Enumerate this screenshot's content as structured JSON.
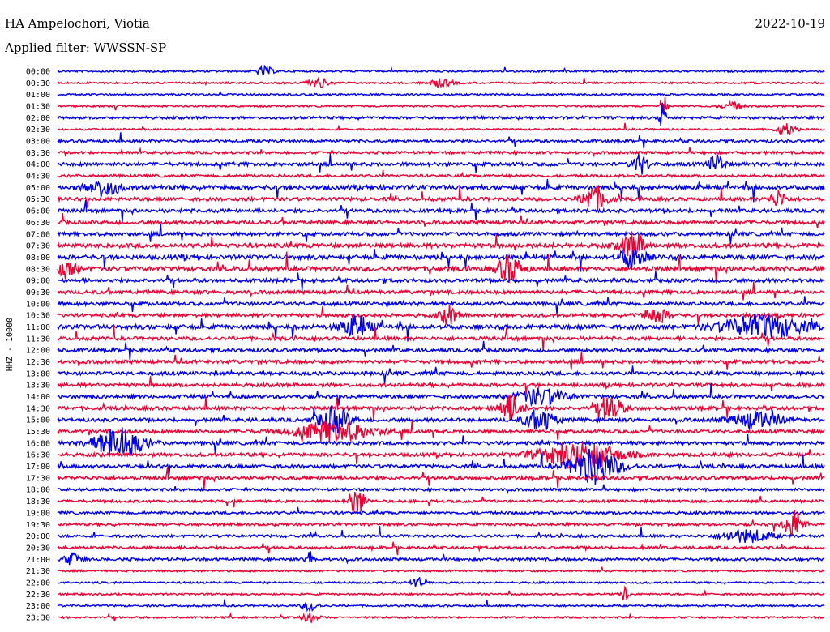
{
  "header": {
    "station": "HA Ampelochori, Viotia",
    "filter": "Applied filter: WWSSN-SP",
    "date": "2022-10-19"
  },
  "chart_data": {
    "type": "line",
    "title": "HA Ampelochori, Viotia",
    "subtitle": "Applied filter: WWSSN-SP",
    "date": "2022-10-19",
    "ylabel": "HHZ - 10000",
    "xlabel": "",
    "categories": [
      "00:00",
      "00:30",
      "01:00",
      "01:30",
      "02:00",
      "02:30",
      "03:00",
      "03:30",
      "04:00",
      "04:30",
      "05:00",
      "05:30",
      "06:00",
      "06:30",
      "07:00",
      "07:30",
      "08:00",
      "08:30",
      "09:00",
      "09:30",
      "10:00",
      "10:30",
      "11:00",
      "11:30",
      "12:00",
      "12:30",
      "13:00",
      "13:30",
      "14:00",
      "14:30",
      "15:00",
      "15:30",
      "16:00",
      "16:30",
      "17:00",
      "17:30",
      "18:00",
      "18:30",
      "19:00",
      "19:30",
      "20:00",
      "20:30",
      "21:00",
      "21:30",
      "22:00",
      "22:30",
      "23:00",
      "23:30"
    ],
    "colors": {
      "even": "#0000ee",
      "odd": "#ee0033"
    },
    "activity": [
      1,
      1,
      1,
      1,
      2,
      1,
      2,
      2,
      3,
      2,
      4,
      3,
      3,
      3,
      3,
      4,
      4,
      4,
      3,
      3,
      3,
      3,
      4,
      3,
      3,
      3,
      3,
      3,
      3,
      3,
      3,
      3,
      3,
      3,
      3,
      3,
      2,
      2,
      2,
      2,
      2,
      2,
      2,
      1,
      1,
      1,
      1,
      1
    ],
    "events": [
      {
        "row": 0,
        "pos": 0.27,
        "amp": 6,
        "width": 0.01
      },
      {
        "row": 1,
        "pos": 0.34,
        "amp": 5,
        "width": 0.015
      },
      {
        "row": 1,
        "pos": 0.5,
        "amp": 5,
        "width": 0.015
      },
      {
        "row": 3,
        "pos": 0.79,
        "amp": 14,
        "width": 0.004
      },
      {
        "row": 3,
        "pos": 0.88,
        "amp": 5,
        "width": 0.012
      },
      {
        "row": 4,
        "pos": 0.79,
        "amp": 22,
        "width": 0.004
      },
      {
        "row": 5,
        "pos": 0.95,
        "amp": 7,
        "width": 0.012
      },
      {
        "row": 8,
        "pos": 0.76,
        "amp": 12,
        "width": 0.01
      },
      {
        "row": 8,
        "pos": 0.86,
        "amp": 12,
        "width": 0.01
      },
      {
        "row": 10,
        "pos": 0.06,
        "amp": 10,
        "width": 0.02
      },
      {
        "row": 11,
        "pos": 0.7,
        "amp": 16,
        "width": 0.015
      },
      {
        "row": 11,
        "pos": 0.94,
        "amp": 10,
        "width": 0.01
      },
      {
        "row": 15,
        "pos": 0.75,
        "amp": 16,
        "width": 0.015
      },
      {
        "row": 16,
        "pos": 0.75,
        "amp": 14,
        "width": 0.015
      },
      {
        "row": 17,
        "pos": 0.59,
        "amp": 16,
        "width": 0.015
      },
      {
        "row": 17,
        "pos": 0.01,
        "amp": 10,
        "width": 0.015
      },
      {
        "row": 21,
        "pos": 0.51,
        "amp": 12,
        "width": 0.01
      },
      {
        "row": 21,
        "pos": 0.78,
        "amp": 10,
        "width": 0.015
      },
      {
        "row": 22,
        "pos": 0.39,
        "amp": 12,
        "width": 0.02
      },
      {
        "row": 22,
        "pos": 0.92,
        "amp": 14,
        "width": 0.05
      },
      {
        "row": 28,
        "pos": 0.63,
        "amp": 10,
        "width": 0.03
      },
      {
        "row": 29,
        "pos": 0.59,
        "amp": 16,
        "width": 0.015
      },
      {
        "row": 29,
        "pos": 0.72,
        "amp": 16,
        "width": 0.015
      },
      {
        "row": 30,
        "pos": 0.36,
        "amp": 16,
        "width": 0.02
      },
      {
        "row": 30,
        "pos": 0.63,
        "amp": 12,
        "width": 0.02
      },
      {
        "row": 30,
        "pos": 0.91,
        "amp": 10,
        "width": 0.03
      },
      {
        "row": 31,
        "pos": 0.36,
        "amp": 12,
        "width": 0.05
      },
      {
        "row": 32,
        "pos": 0.08,
        "amp": 20,
        "width": 0.03
      },
      {
        "row": 33,
        "pos": 0.68,
        "amp": 16,
        "width": 0.05
      },
      {
        "row": 34,
        "pos": 0.7,
        "amp": 22,
        "width": 0.03
      },
      {
        "row": 37,
        "pos": 0.39,
        "amp": 18,
        "width": 0.01
      },
      {
        "row": 39,
        "pos": 0.96,
        "amp": 18,
        "width": 0.012
      },
      {
        "row": 40,
        "pos": 0.9,
        "amp": 8,
        "width": 0.03
      },
      {
        "row": 42,
        "pos": 0.33,
        "amp": 12,
        "width": 0.005
      },
      {
        "row": 42,
        "pos": 0.02,
        "amp": 8,
        "width": 0.01
      },
      {
        "row": 44,
        "pos": 0.47,
        "amp": 6,
        "width": 0.01
      },
      {
        "row": 45,
        "pos": 0.74,
        "amp": 10,
        "width": 0.005
      },
      {
        "row": 46,
        "pos": 0.33,
        "amp": 6,
        "width": 0.01
      },
      {
        "row": 47,
        "pos": 0.33,
        "amp": 6,
        "width": 0.01
      }
    ]
  }
}
